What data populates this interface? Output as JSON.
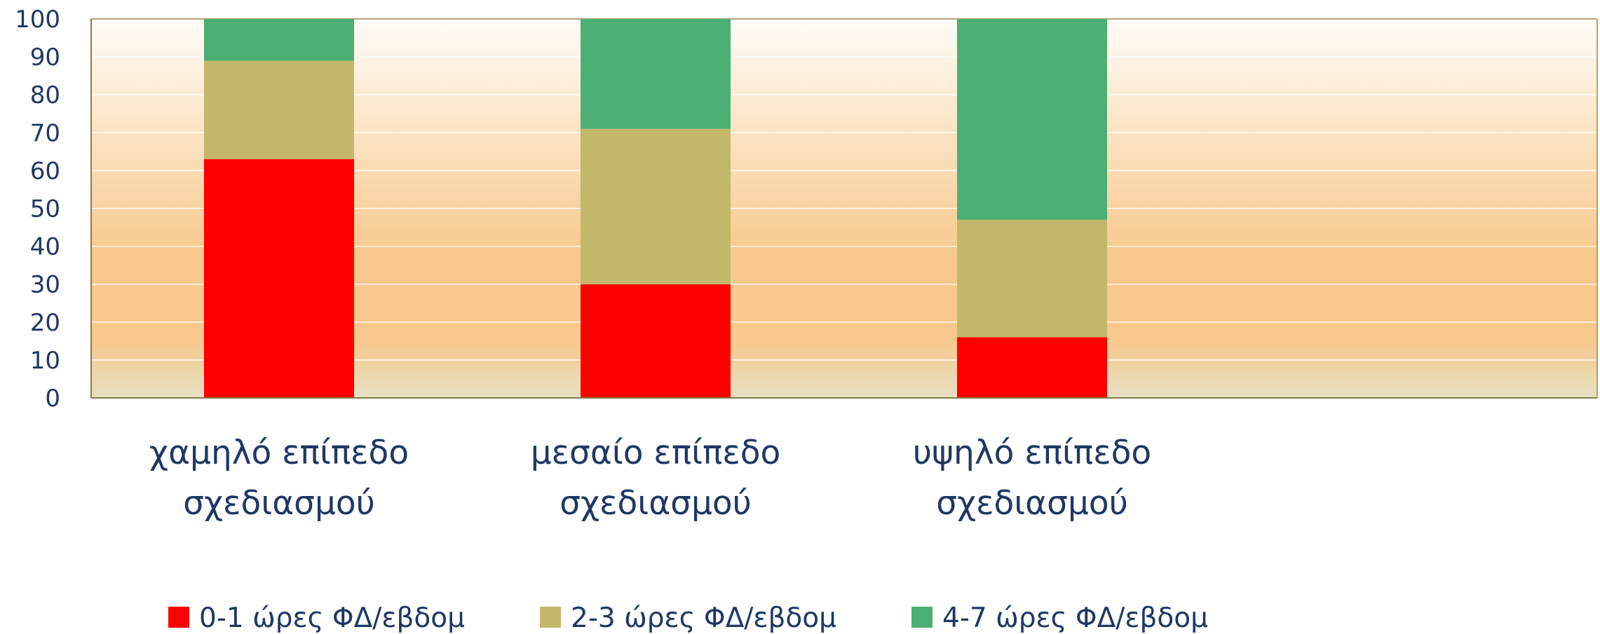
{
  "chart_data": {
    "type": "bar",
    "stacked": true,
    "categories": [
      [
        "χαμηλό επίπεδο",
        "σχεδιασμού"
      ],
      [
        "μεσαίο επίπεδο",
        "σχεδιασμού"
      ],
      [
        "υψηλό επίπεδο",
        "σχεδιασμού"
      ],
      [
        ""
      ]
    ],
    "series": [
      {
        "name": "0-1 ώρες ΦΔ/εβδομ",
        "color": "#ff0000",
        "values": [
          63,
          30,
          16,
          0
        ]
      },
      {
        "name": "2-3 ώρες ΦΔ/εβδομ",
        "color": "#c2b76b",
        "values": [
          26,
          41,
          31,
          0
        ]
      },
      {
        "name": "4-7 ώρες ΦΔ/εβδομ",
        "color": "#4caf73",
        "values": [
          11,
          29,
          53,
          0
        ]
      }
    ],
    "yticks": [
      0,
      10,
      20,
      30,
      40,
      50,
      60,
      70,
      80,
      90,
      100
    ],
    "ylim": [
      0,
      100
    ],
    "title": "",
    "xlabel": "",
    "ylabel": "",
    "grid": true,
    "legend_position": "bottom",
    "background_gradient": [
      "#fffcf6",
      "#f7c98d",
      "#e6e0c3"
    ],
    "axis_text_color": "#1f3864"
  }
}
